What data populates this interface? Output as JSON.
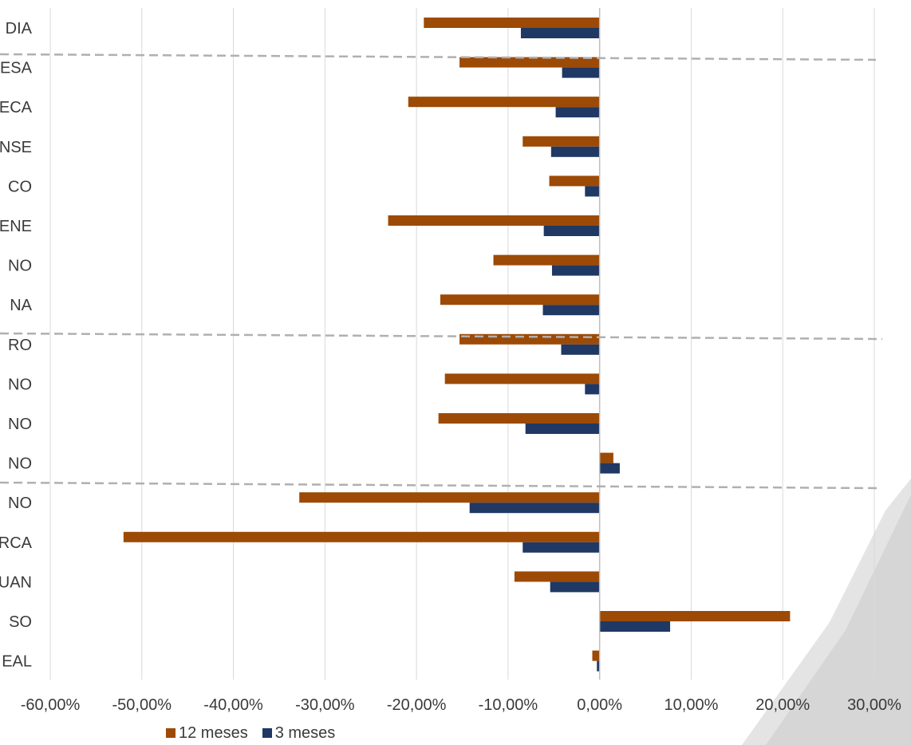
{
  "chart_data": {
    "type": "bar",
    "orientation": "horizontal",
    "categories": [
      "DIA",
      "ESA",
      "ECA",
      "NSE",
      "CO",
      "ENE",
      "NO",
      "NA",
      "RO",
      "NO",
      "NO",
      "NO",
      "NO",
      "RCA",
      "UAN",
      "SO",
      "EAL"
    ],
    "series": [
      {
        "name": "12 meses",
        "color": "#9c4a05",
        "values": [
          -19.2,
          -15.3,
          -20.9,
          -8.4,
          -5.5,
          -23.1,
          -11.6,
          -17.4,
          -15.3,
          -16.9,
          -17.6,
          1.5,
          -32.8,
          -52.0,
          -9.3,
          20.8,
          -0.8
        ]
      },
      {
        "name": "3 meses",
        "color": "#1f3864",
        "values": [
          -8.6,
          -4.1,
          -4.8,
          -5.3,
          -1.6,
          -6.1,
          -5.2,
          -6.2,
          -4.2,
          -1.6,
          -8.1,
          2.2,
          -14.2,
          -8.4,
          -5.4,
          7.7,
          -0.3
        ]
      }
    ],
    "xlim": [
      -60,
      30
    ],
    "xticks": [
      -60,
      -50,
      -40,
      -30,
      -20,
      -10,
      0,
      10,
      20,
      30
    ],
    "xtick_labels": [
      "-60,00%",
      "-50,00%",
      "-40,00%",
      "-30,00%",
      "-20,00%",
      "-10,00%",
      "0,00%",
      "10,00%",
      "20,00%",
      "30,00%"
    ],
    "grid": true,
    "legend_position": "bottom-left",
    "group_separators_after": [
      "DIA",
      "NA",
      "NO"
    ],
    "colors": {
      "gridline": "#d9d9d9",
      "axis": "#bfbfbf",
      "separator": "#b0b0b0",
      "text": "#3a3a3a"
    }
  }
}
